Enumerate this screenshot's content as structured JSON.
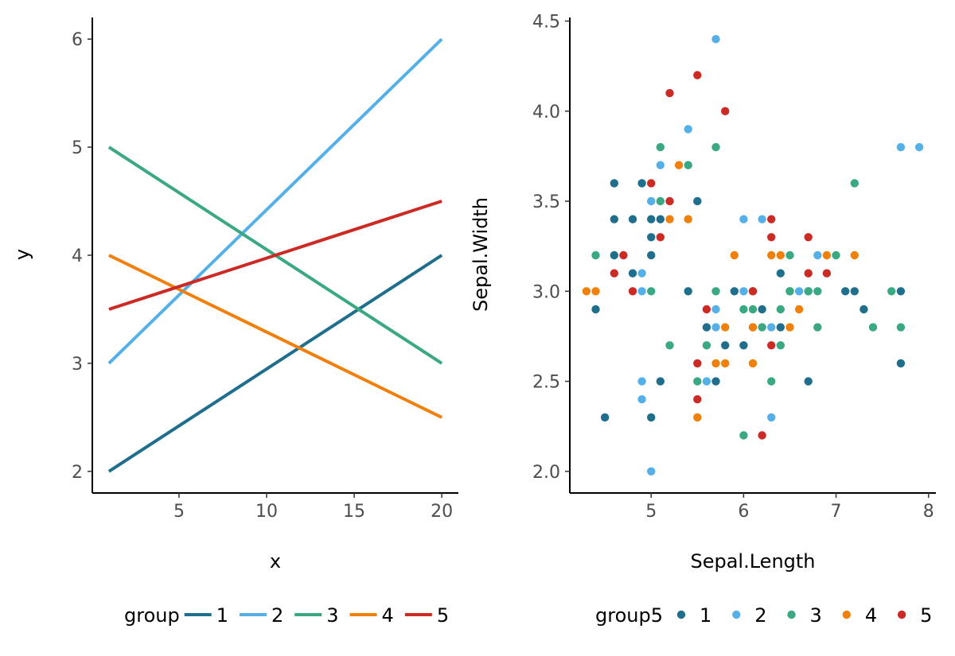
{
  "colors": [
    "#1f6e8c",
    "#56b0e8",
    "#3aa981",
    "#f0800c",
    "#cc2a24"
  ],
  "chart_data": [
    {
      "type": "line",
      "xlabel": "x",
      "ylabel": "y",
      "xlim": [
        0.05,
        20.95
      ],
      "ylim": [
        1.8,
        6.2
      ],
      "xticks": [
        5,
        10,
        15,
        20
      ],
      "xtick_labels": [
        "5",
        "10",
        "15",
        "20"
      ],
      "yticks": [
        2,
        3,
        4,
        5,
        6
      ],
      "ytick_labels": [
        "2",
        "3",
        "4",
        "5",
        "6"
      ],
      "grid": false,
      "legend": {
        "title": "group",
        "position": "bottom",
        "entries": [
          "1",
          "2",
          "3",
          "4",
          "5"
        ]
      },
      "series": [
        {
          "name": "1",
          "x": [
            1,
            20
          ],
          "y": [
            2.0,
            4.0
          ]
        },
        {
          "name": "2",
          "x": [
            1,
            20
          ],
          "y": [
            3.0,
            6.0
          ]
        },
        {
          "name": "3",
          "x": [
            1,
            20
          ],
          "y": [
            5.0,
            3.0
          ]
        },
        {
          "name": "4",
          "x": [
            1,
            20
          ],
          "y": [
            4.0,
            2.5
          ]
        },
        {
          "name": "5",
          "x": [
            1,
            20
          ],
          "y": [
            3.5,
            4.5
          ]
        }
      ]
    },
    {
      "type": "scatter",
      "xlabel": "Sepal.Length",
      "ylabel": "Sepal.Width",
      "xlim": [
        4.12,
        8.08
      ],
      "ylim": [
        1.88,
        4.52
      ],
      "xticks": [
        5,
        6,
        7,
        8
      ],
      "xtick_labels": [
        "5",
        "6",
        "7",
        "8"
      ],
      "yticks": [
        2.0,
        2.5,
        3.0,
        3.5,
        4.0,
        4.5
      ],
      "ytick_labels": [
        "2.0",
        "2.5",
        "3.0",
        "3.5",
        "4.0",
        "4.5"
      ],
      "grid": false,
      "legend": {
        "title": "group5",
        "position": "bottom",
        "entries": [
          "1",
          "2",
          "3",
          "4",
          "5"
        ]
      },
      "series": [
        {
          "name": "1",
          "points": [
            [
              4.4,
              2.9
            ],
            [
              4.5,
              2.3
            ],
            [
              4.6,
              3.6
            ],
            [
              4.6,
              3.4
            ],
            [
              4.6,
              3.2
            ],
            [
              4.8,
              3.4
            ],
            [
              4.8,
              3.1
            ],
            [
              4.9,
              3.6
            ],
            [
              5.0,
              3.4
            ],
            [
              5.0,
              3.3
            ],
            [
              5.0,
              3.2
            ],
            [
              5.0,
              2.3
            ],
            [
              5.1,
              3.4
            ],
            [
              5.1,
              2.5
            ],
            [
              5.5,
              3.5
            ],
            [
              5.4,
              3.0
            ],
            [
              5.6,
              2.8
            ],
            [
              5.7,
              2.5
            ],
            [
              5.8,
              2.7
            ],
            [
              5.9,
              3.0
            ],
            [
              6.0,
              2.7
            ],
            [
              6.2,
              2.9
            ],
            [
              6.4,
              3.1
            ],
            [
              6.4,
              2.8
            ],
            [
              6.5,
              3.0
            ],
            [
              6.7,
              2.5
            ],
            [
              7.1,
              3.0
            ],
            [
              7.2,
              3.0
            ],
            [
              7.3,
              2.9
            ],
            [
              7.7,
              3.0
            ],
            [
              7.7,
              2.6
            ],
            [
              6.1,
              3.0
            ]
          ]
        },
        {
          "name": "2",
          "points": [
            [
              4.9,
              3.1
            ],
            [
              4.9,
              3.0
            ],
            [
              4.9,
              2.5
            ],
            [
              4.9,
              2.4
            ],
            [
              5.0,
              3.5
            ],
            [
              5.0,
              2.0
            ],
            [
              5.1,
              3.7
            ],
            [
              5.4,
              3.9
            ],
            [
              5.6,
              2.5
            ],
            [
              5.7,
              4.4
            ],
            [
              5.7,
              2.9
            ],
            [
              5.7,
              2.8
            ],
            [
              6.0,
              3.4
            ],
            [
              6.0,
              3.0
            ],
            [
              6.2,
              3.4
            ],
            [
              6.3,
              2.8
            ],
            [
              6.3,
              2.3
            ],
            [
              6.6,
              3.0
            ],
            [
              6.7,
              3.0
            ],
            [
              6.8,
              3.2
            ],
            [
              7.7,
              3.8
            ],
            [
              7.9,
              3.8
            ]
          ]
        },
        {
          "name": "3",
          "points": [
            [
              4.4,
              3.2
            ],
            [
              5.0,
              3.0
            ],
            [
              5.1,
              3.8
            ],
            [
              5.1,
              3.5
            ],
            [
              5.2,
              2.7
            ],
            [
              5.4,
              3.7
            ],
            [
              5.5,
              2.5
            ],
            [
              5.6,
              2.7
            ],
            [
              5.7,
              3.8
            ],
            [
              5.7,
              3.0
            ],
            [
              6.0,
              2.9
            ],
            [
              6.0,
              2.2
            ],
            [
              6.1,
              2.9
            ],
            [
              6.1,
              2.8
            ],
            [
              6.2,
              2.8
            ],
            [
              6.3,
              2.5
            ],
            [
              6.4,
              2.9
            ],
            [
              6.4,
              2.7
            ],
            [
              6.5,
              3.2
            ],
            [
              6.5,
              3.0
            ],
            [
              6.7,
              3.0
            ],
            [
              6.8,
              3.0
            ],
            [
              6.8,
              2.8
            ],
            [
              7.0,
              3.2
            ],
            [
              7.2,
              3.6
            ],
            [
              7.4,
              2.8
            ],
            [
              7.6,
              3.0
            ],
            [
              7.7,
              2.8
            ]
          ]
        },
        {
          "name": "4",
          "points": [
            [
              4.3,
              3.0
            ],
            [
              4.4,
              3.0
            ],
            [
              5.2,
              3.4
            ],
            [
              5.3,
              3.7
            ],
            [
              5.4,
              3.4
            ],
            [
              5.5,
              2.3
            ],
            [
              5.7,
              2.6
            ],
            [
              5.8,
              2.6
            ],
            [
              5.8,
              2.8
            ],
            [
              5.9,
              3.2
            ],
            [
              6.1,
              2.8
            ],
            [
              6.1,
              2.6
            ],
            [
              6.3,
              3.2
            ],
            [
              6.4,
              3.2
            ],
            [
              6.5,
              2.8
            ],
            [
              6.6,
              2.9
            ],
            [
              6.9,
              3.2
            ],
            [
              7.2,
              3.2
            ]
          ]
        },
        {
          "name": "5",
          "points": [
            [
              4.6,
              3.1
            ],
            [
              4.7,
              3.2
            ],
            [
              4.8,
              3.0
            ],
            [
              5.0,
              3.6
            ],
            [
              5.1,
              3.3
            ],
            [
              5.2,
              4.1
            ],
            [
              5.2,
              3.5
            ],
            [
              5.5,
              4.2
            ],
            [
              5.5,
              2.6
            ],
            [
              5.5,
              2.4
            ],
            [
              5.6,
              2.9
            ],
            [
              5.8,
              4.0
            ],
            [
              6.1,
              3.0
            ],
            [
              6.2,
              2.2
            ],
            [
              6.3,
              3.4
            ],
            [
              6.3,
              3.3
            ],
            [
              6.3,
              2.7
            ],
            [
              6.7,
              3.3
            ],
            [
              6.7,
              3.1
            ],
            [
              6.9,
              3.1
            ]
          ]
        }
      ]
    }
  ]
}
